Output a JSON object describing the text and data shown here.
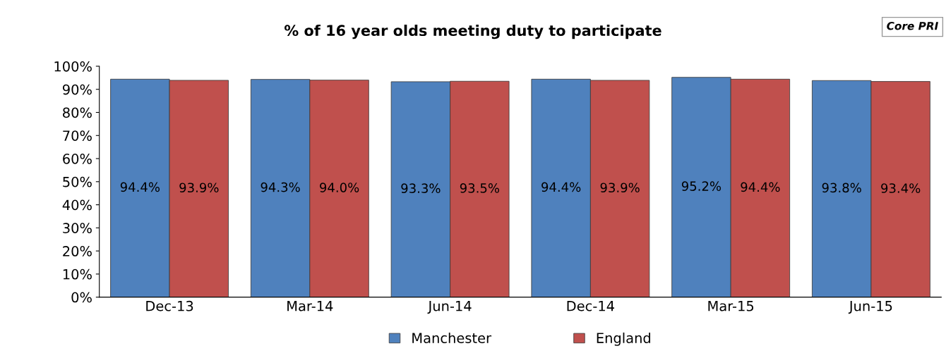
{
  "chart_data": {
    "type": "bar",
    "title": "% of 16 year olds meeting duty to participate",
    "categories": [
      "Dec-13",
      "Mar-14",
      "Jun-14",
      "Dec-14",
      "Mar-15",
      "Jun-15"
    ],
    "series": [
      {
        "name": "Manchester",
        "color": "#4f81bd",
        "values": [
          94.4,
          94.3,
          93.3,
          94.4,
          95.2,
          93.8
        ],
        "value_labels": [
          "94.4%",
          "94.3%",
          "93.3%",
          "94.4%",
          "95.2%",
          "93.8%"
        ]
      },
      {
        "name": "England",
        "color": "#c0504d",
        "values": [
          93.9,
          94.0,
          93.5,
          93.9,
          94.4,
          93.4
        ],
        "value_labels": [
          "93.9%",
          "94.0%",
          "93.5%",
          "93.9%",
          "94.4%",
          "93.4%"
        ]
      }
    ],
    "ylim": [
      0,
      100
    ],
    "yticks": [
      {
        "value": 0,
        "label": "0%"
      },
      {
        "value": 10,
        "label": "10%"
      },
      {
        "value": 20,
        "label": "20%"
      },
      {
        "value": 30,
        "label": "30%"
      },
      {
        "value": 40,
        "label": "40%"
      },
      {
        "value": 50,
        "label": "50%"
      },
      {
        "value": 60,
        "label": "60%"
      },
      {
        "value": 70,
        "label": "70%"
      },
      {
        "value": 80,
        "label": "80%"
      },
      {
        "value": 90,
        "label": "90%"
      },
      {
        "value": 100,
        "label": "100%"
      }
    ],
    "legend": "bottom",
    "grid": false,
    "annotations": [
      "Core PRI"
    ]
  }
}
